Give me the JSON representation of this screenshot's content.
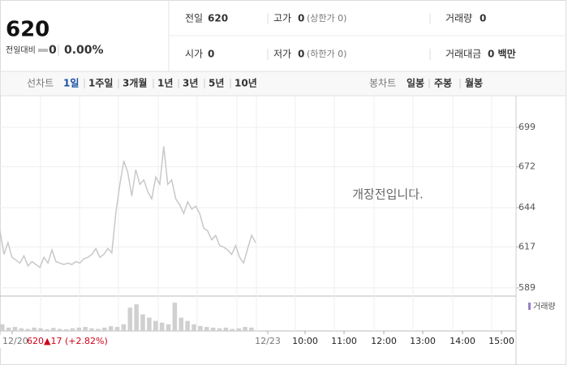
{
  "header": {
    "price": "620",
    "change_label": "전일대비",
    "change": "0",
    "change_rate": "0.00%",
    "fields": [
      {
        "label": "전일",
        "value": "620"
      },
      {
        "label": "고가",
        "value": "0",
        "note": "(상한가 0)"
      },
      {
        "label": "거래량",
        "value": "0"
      },
      {
        "label": "시가",
        "value": "0"
      },
      {
        "label": "저가",
        "value": "0",
        "note": "(하한가 0)"
      },
      {
        "label": "거래대금",
        "value": "0 백만"
      }
    ]
  },
  "tabs": {
    "line_label": "선차트",
    "line_periods": [
      "1일",
      "1주일",
      "3개월",
      "1년",
      "3년",
      "5년",
      "10년"
    ],
    "active": 0,
    "candle_label": "봉차트",
    "candle_periods": [
      "일봉",
      "주봉",
      "월봉"
    ]
  },
  "chart_data": {
    "type": "line",
    "notice": "개장전입니다.",
    "color": "#c8c8c8",
    "values": [
      628,
      612,
      620,
      610,
      608,
      606,
      611,
      604,
      607,
      605,
      603,
      610,
      606,
      615,
      607,
      606,
      605,
      606,
      605,
      607,
      606,
      609,
      610,
      612,
      616,
      610,
      612,
      616,
      613,
      640,
      660,
      676,
      668,
      652,
      670,
      660,
      663,
      655,
      650,
      665,
      660,
      686,
      660,
      663,
      650,
      646,
      640,
      648,
      643,
      645,
      640,
      630,
      628,
      622,
      625,
      618,
      617,
      615,
      612,
      618,
      610,
      606,
      616,
      625,
      620
    ],
    "ylim": [
      583.4,
      719.6
    ],
    "yticks": [
      699,
      672,
      644,
      617,
      589
    ],
    "x_labels": [
      "12/20",
      "12/23",
      "10:00",
      "11:00",
      "12:00",
      "13:00",
      "14:00",
      "15:00"
    ],
    "volume": {
      "name": "거래량",
      "color": "#d0d0d0",
      "values": [
        20,
        10,
        12,
        8,
        6,
        10,
        8,
        5,
        9,
        6,
        5,
        8,
        10,
        12,
        8,
        6,
        10,
        14,
        12,
        20,
        70,
        80,
        50,
        40,
        30,
        25,
        20,
        85,
        40,
        30,
        20,
        15,
        12,
        10,
        8,
        10,
        6,
        8,
        12,
        10
      ],
      "ylim": [
        0,
        100
      ]
    }
  },
  "footer": {
    "date": "12/20",
    "price": "620",
    "change": "▲17",
    "rate": "(+2.82%)"
  }
}
